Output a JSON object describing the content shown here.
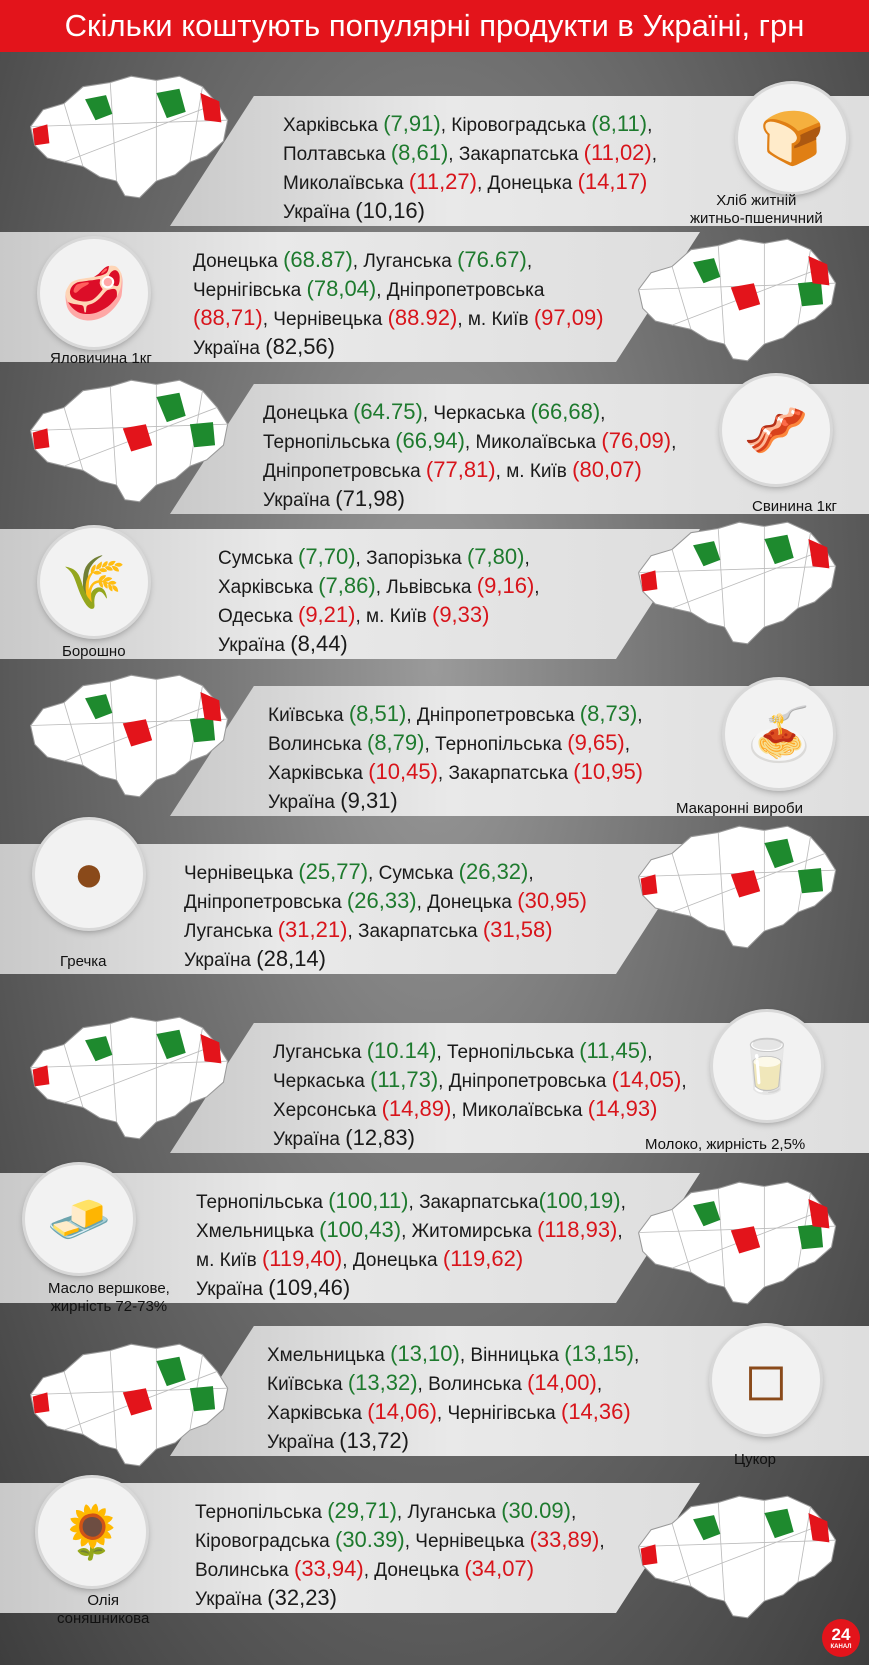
{
  "title": "Скільки коштують популярні продукти в Україні, грн",
  "colors": {
    "green": "#1e7a2e",
    "red": "#d8141b",
    "header": "#e3141b"
  },
  "sections": [
    {
      "product": "Хліб житній\nжитньо-пшеничний",
      "icon": "bread-icon",
      "lines": [
        [
          [
            "Харківська ",
            "k"
          ],
          [
            "(7,91)",
            "g"
          ],
          [
            ", Кіровоградська ",
            "k"
          ],
          [
            "(8,11)",
            "g"
          ],
          [
            ",",
            "k"
          ]
        ],
        [
          [
            "Полтавська ",
            "k"
          ],
          [
            "(8,61)",
            "g"
          ],
          [
            ", Закарпатська ",
            "k"
          ],
          [
            "(11,02)",
            "rd"
          ],
          [
            ",",
            "k"
          ]
        ],
        [
          [
            "Миколаївська ",
            "k"
          ],
          [
            "(11,27)",
            "rd"
          ],
          [
            ", Донецька ",
            "k"
          ],
          [
            "(14,17)",
            "rd"
          ]
        ],
        [
          [
            "Україна ",
            "k"
          ],
          [
            "(10,16)",
            "k"
          ]
        ]
      ]
    },
    {
      "product": "Яловичина 1кг",
      "icon": "beef-steak-icon",
      "lines": [
        [
          [
            "Донецька ",
            "k"
          ],
          [
            "(68.87)",
            "g"
          ],
          [
            ", Луганська ",
            "k"
          ],
          [
            "(76.67)",
            "g"
          ],
          [
            ",",
            "k"
          ]
        ],
        [
          [
            "Чернігівська ",
            "k"
          ],
          [
            "(78,04)",
            "g"
          ],
          [
            ", Дніпропетровська",
            "k"
          ]
        ],
        [
          [
            "(88,71)",
            "rd"
          ],
          [
            ", Чернівецька ",
            "k"
          ],
          [
            "(88.92)",
            "rd"
          ],
          [
            ", м. Київ ",
            "k"
          ],
          [
            "(97,09)",
            "rd"
          ]
        ],
        [
          [
            "Україна ",
            "k"
          ],
          [
            "(82,56)",
            "k"
          ]
        ]
      ]
    },
    {
      "product": "Свинина 1кг",
      "icon": "pork-meat-icon",
      "lines": [
        [
          [
            "Донецька ",
            "k"
          ],
          [
            "(64.75)",
            "g"
          ],
          [
            ", Черкаська ",
            "k"
          ],
          [
            "(66,68)",
            "g"
          ],
          [
            ",",
            "k"
          ]
        ],
        [
          [
            "Тернопільська ",
            "k"
          ],
          [
            "(66,94)",
            "g"
          ],
          [
            ", Миколаївська ",
            "k"
          ],
          [
            "(76,09)",
            "rd"
          ],
          [
            ",",
            "k"
          ]
        ],
        [
          [
            "Дніпропетровська ",
            "k"
          ],
          [
            "(77,81)",
            "rd"
          ],
          [
            ", м. Київ ",
            "k"
          ],
          [
            "(80,07)",
            "rd"
          ]
        ],
        [
          [
            "Україна ",
            "k"
          ],
          [
            "(71,98)",
            "k"
          ]
        ]
      ]
    },
    {
      "product": "Борошно",
      "icon": "flour-sack-icon",
      "lines": [
        [
          [
            "Сумська ",
            "k"
          ],
          [
            "(7,70)",
            "g"
          ],
          [
            ", Запорізька ",
            "k"
          ],
          [
            "(7,80)",
            "g"
          ],
          [
            ",",
            "k"
          ]
        ],
        [
          [
            "Харківська ",
            "k"
          ],
          [
            "(7,86)",
            "g"
          ],
          [
            ", Львівська ",
            "k"
          ],
          [
            "(9,16)",
            "rd"
          ],
          [
            ",",
            "k"
          ]
        ],
        [
          [
            "Одеська ",
            "k"
          ],
          [
            "(9,21)",
            "rd"
          ],
          [
            ", м. Київ ",
            "k"
          ],
          [
            "(9,33)",
            "rd"
          ]
        ],
        [
          [
            "Україна ",
            "k"
          ],
          [
            "(8,44)",
            "k"
          ]
        ]
      ]
    },
    {
      "product": "Макаронні вироби",
      "icon": "pasta-icon",
      "lines": [
        [
          [
            "Київська ",
            "k"
          ],
          [
            "(8,51)",
            "g"
          ],
          [
            ", Дніпропетровська ",
            "k"
          ],
          [
            "(8,73)",
            "g"
          ],
          [
            ",",
            "k"
          ]
        ],
        [
          [
            "Волинська ",
            "k"
          ],
          [
            "(8,79)",
            "g"
          ],
          [
            ", Тернопільська ",
            "k"
          ],
          [
            "(9,65)",
            "rd"
          ],
          [
            ",",
            "k"
          ]
        ],
        [
          [
            "Харківська ",
            "k"
          ],
          [
            "(10,45)",
            "rd"
          ],
          [
            ", Закарпатська ",
            "k"
          ],
          [
            "(10,95)",
            "rd"
          ]
        ],
        [
          [
            "Україна ",
            "k"
          ],
          [
            "(9,31)",
            "k"
          ]
        ]
      ]
    },
    {
      "product": "Гречка",
      "icon": "buckwheat-icon",
      "lines": [
        [
          [
            "Чернівецька ",
            "k"
          ],
          [
            "(25,77)",
            "g"
          ],
          [
            ", Сумська ",
            "k"
          ],
          [
            "(26,32)",
            "g"
          ],
          [
            ",",
            "k"
          ]
        ],
        [
          [
            "Дніпропетровська ",
            "k"
          ],
          [
            "(26,33)",
            "g"
          ],
          [
            ", Донецька ",
            "k"
          ],
          [
            "(30,95)",
            "rd"
          ]
        ],
        [
          [
            "Луганська ",
            "k"
          ],
          [
            "(31,21)",
            "rd"
          ],
          [
            ", Закарпатська ",
            "k"
          ],
          [
            "(31,58)",
            "rd"
          ]
        ],
        [
          [
            "Україна ",
            "k"
          ],
          [
            "(28,14)",
            "k"
          ]
        ]
      ]
    },
    {
      "product": "Молоко, жирність 2,5%",
      "icon": "milk-carton-icon",
      "lines": [
        [
          [
            "Луганська ",
            "k"
          ],
          [
            "(10.14)",
            "g"
          ],
          [
            ", Тернопільська ",
            "k"
          ],
          [
            "(11,45)",
            "g"
          ],
          [
            ",",
            "k"
          ]
        ],
        [
          [
            "Черкаська ",
            "k"
          ],
          [
            "(11,73)",
            "g"
          ],
          [
            ", Дніпропетровська ",
            "k"
          ],
          [
            "(14,05)",
            "rd"
          ],
          [
            ",",
            "k"
          ]
        ],
        [
          [
            "Херсонська ",
            "k"
          ],
          [
            "(14,89)",
            "rd"
          ],
          [
            ", Миколаївська ",
            "k"
          ],
          [
            "(14,93)",
            "rd"
          ]
        ],
        [
          [
            "Україна ",
            "k"
          ],
          [
            "(12,83)",
            "k"
          ]
        ]
      ]
    },
    {
      "product": "Масло вершкове,\nжирність 72-73%",
      "icon": "butter-icon",
      "lines": [
        [
          [
            "Тернопільська ",
            "k"
          ],
          [
            "(100,11)",
            "g"
          ],
          [
            ", Закарпатська",
            "k"
          ],
          [
            "(100,19)",
            "g"
          ],
          [
            ",",
            "k"
          ]
        ],
        [
          [
            " Хмельницька ",
            "k"
          ],
          [
            "(100,43)",
            "g"
          ],
          [
            ", Житомирська ",
            "k"
          ],
          [
            "(118,93)",
            "rd"
          ],
          [
            ",",
            "k"
          ]
        ],
        [
          [
            "м. Київ ",
            "k"
          ],
          [
            "(119,40)",
            "rd"
          ],
          [
            ", Донецька ",
            "k"
          ],
          [
            "(119,62)",
            "rd"
          ]
        ],
        [
          [
            "Україна ",
            "k"
          ],
          [
            "(109,46)",
            "k"
          ]
        ]
      ]
    },
    {
      "product": "Цукор",
      "icon": "sugar-bowl-icon",
      "lines": [
        [
          [
            "Хмельницька ",
            "k"
          ],
          [
            "(13,10)",
            "g"
          ],
          [
            ", Вінницька ",
            "k"
          ],
          [
            "(13,15)",
            "g"
          ],
          [
            ",",
            "k"
          ]
        ],
        [
          [
            "Київська ",
            "k"
          ],
          [
            "(13,32)",
            "g"
          ],
          [
            ", Волинська ",
            "k"
          ],
          [
            "(14,00)",
            "rd"
          ],
          [
            ",",
            "k"
          ]
        ],
        [
          [
            "Харківська ",
            "k"
          ],
          [
            "(14,06)",
            "rd"
          ],
          [
            ", Чернігівська ",
            "k"
          ],
          [
            "(14,36)",
            "rd"
          ]
        ],
        [
          [
            "Україна ",
            "k"
          ],
          [
            "(13,72)",
            "k"
          ]
        ]
      ]
    },
    {
      "product": "Олія\nсоняшникова",
      "icon": "sunflower-oil-icon",
      "lines": [
        [
          [
            "Тернопільська ",
            "k"
          ],
          [
            "(29,71)",
            "g"
          ],
          [
            ", Луганська ",
            "k"
          ],
          [
            "(30.09)",
            "g"
          ],
          [
            ",",
            "k"
          ]
        ],
        [
          [
            "Кіровоградська ",
            "k"
          ],
          [
            "(30.39)",
            "g"
          ],
          [
            ", Чернівецька ",
            "k"
          ],
          [
            "(33,89)",
            "rd"
          ],
          [
            ",",
            "k"
          ]
        ],
        [
          [
            "Волинська ",
            "k"
          ],
          [
            "(33,94)",
            "rd"
          ],
          [
            ", Донецька ",
            "k"
          ],
          [
            "(34,07)",
            "rd"
          ]
        ],
        [
          [
            "Україна ",
            "k"
          ],
          [
            "(32,23)",
            "k"
          ]
        ]
      ]
    }
  ],
  "logo": {
    "number": "24",
    "caption": "КАНАЛ"
  }
}
